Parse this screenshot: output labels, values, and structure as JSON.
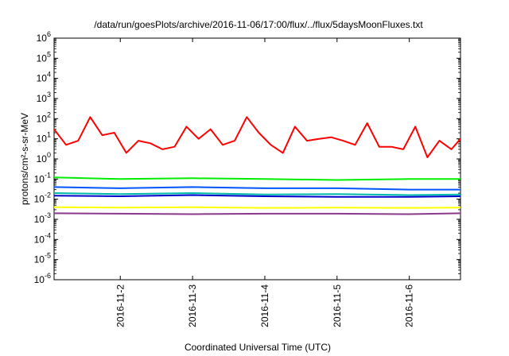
{
  "chart_data": {
    "type": "line",
    "title": "/data/run/goesPlots/archive/2016-11-06/17:00/flux/../flux/5daysMoonFluxes.txt",
    "xlabel": "Coordinated Universal Time (UTC)",
    "ylabel": "protons/cm²-s-sr-MeV",
    "y_scale": "log",
    "ylim_exponents": [
      -6,
      6
    ],
    "y_tick_labels": [
      {
        "base": "10",
        "exp": "6"
      },
      {
        "base": "10",
        "exp": "5"
      },
      {
        "base": "10",
        "exp": "4"
      },
      {
        "base": "10",
        "exp": "3"
      },
      {
        "base": "10",
        "exp": "2"
      },
      {
        "base": "10",
        "exp": "1"
      },
      {
        "base": "10",
        "exp": "0"
      },
      {
        "base": "10",
        "exp": "-1"
      },
      {
        "base": "10",
        "exp": "-2"
      },
      {
        "base": "10",
        "exp": "-3"
      },
      {
        "base": "10",
        "exp": "-4"
      },
      {
        "base": "10",
        "exp": "-5"
      },
      {
        "base": "10",
        "exp": "-6"
      }
    ],
    "xlim": [
      "2016-11-01 02:00",
      "2016-11-06 17:00"
    ],
    "x_tick_labels": [
      "2016-11-2",
      "2016-11-3",
      "2016-11-4",
      "2016-11-5",
      "2016-11-6"
    ],
    "grid": false,
    "series": [
      {
        "color": "#ff0000",
        "x": [
          "2016-11-01 02:00",
          "2016-11-01 06:00",
          "2016-11-01 10:00",
          "2016-11-01 14:00",
          "2016-11-01 18:00",
          "2016-11-01 22:00",
          "2016-11-02 02:00",
          "2016-11-02 06:00",
          "2016-11-02 10:00",
          "2016-11-02 14:00",
          "2016-11-02 18:00",
          "2016-11-02 22:00",
          "2016-11-03 02:00",
          "2016-11-03 06:00",
          "2016-11-03 10:00",
          "2016-11-03 14:00",
          "2016-11-03 18:00",
          "2016-11-03 22:00",
          "2016-11-04 02:00",
          "2016-11-04 06:00",
          "2016-11-04 10:00",
          "2016-11-04 14:00",
          "2016-11-04 18:00",
          "2016-11-04 22:00",
          "2016-11-05 02:00",
          "2016-11-05 06:00",
          "2016-11-05 10:00",
          "2016-11-05 14:00",
          "2016-11-05 18:00",
          "2016-11-05 22:00",
          "2016-11-06 02:00",
          "2016-11-06 06:00",
          "2016-11-06 10:00",
          "2016-11-06 14:00",
          "2016-11-06 17:00"
        ],
        "values": [
          30,
          5,
          8,
          120,
          15,
          20,
          2,
          8,
          6,
          3,
          4,
          40,
          10,
          30,
          5,
          8,
          120,
          20,
          5,
          2,
          40,
          8,
          10,
          12,
          8,
          5,
          60,
          4,
          4,
          3,
          40,
          1.2,
          8,
          3,
          10
        ]
      },
      {
        "color": "#00ee00",
        "x": [
          "2016-11-01 02:00",
          "2016-11-02 00:00",
          "2016-11-03 00:00",
          "2016-11-04 00:00",
          "2016-11-05 00:00",
          "2016-11-06 00:00",
          "2016-11-06 17:00"
        ],
        "values": [
          0.12,
          0.1,
          0.11,
          0.1,
          0.09,
          0.1,
          0.1
        ]
      },
      {
        "color": "#0055ff",
        "x": [
          "2016-11-01 02:00",
          "2016-11-02 00:00",
          "2016-11-03 00:00",
          "2016-11-04 00:00",
          "2016-11-05 00:00",
          "2016-11-06 00:00",
          "2016-11-06 17:00"
        ],
        "values": [
          0.04,
          0.035,
          0.04,
          0.035,
          0.035,
          0.03,
          0.03
        ]
      },
      {
        "color": "#00bbaa",
        "x": [
          "2016-11-01 02:00",
          "2016-11-02 00:00",
          "2016-11-03 00:00",
          "2016-11-04 00:00",
          "2016-11-05 00:00",
          "2016-11-06 00:00",
          "2016-11-06 17:00"
        ],
        "values": [
          0.02,
          0.018,
          0.02,
          0.017,
          0.018,
          0.016,
          0.017
        ]
      },
      {
        "color": "#0000cc",
        "x": [
          "2016-11-01 02:00",
          "2016-11-02 00:00",
          "2016-11-03 00:00",
          "2016-11-04 00:00",
          "2016-11-05 00:00",
          "2016-11-06 00:00",
          "2016-11-06 17:00"
        ],
        "values": [
          0.015,
          0.014,
          0.016,
          0.014,
          0.013,
          0.013,
          0.014
        ]
      },
      {
        "color": "#ffff00",
        "x": [
          "2016-11-01 02:00",
          "2016-11-02 00:00",
          "2016-11-03 00:00",
          "2016-11-04 00:00",
          "2016-11-05 00:00",
          "2016-11-06 00:00",
          "2016-11-06 17:00"
        ],
        "values": [
          0.004,
          0.0038,
          0.004,
          0.0037,
          0.0038,
          0.0037,
          0.0038
        ]
      },
      {
        "color": "#8b3a8b",
        "x": [
          "2016-11-01 02:00",
          "2016-11-02 00:00",
          "2016-11-03 00:00",
          "2016-11-04 00:00",
          "2016-11-05 00:00",
          "2016-11-06 00:00",
          "2016-11-06 17:00"
        ],
        "values": [
          0.002,
          0.0019,
          0.0018,
          0.0019,
          0.0019,
          0.0018,
          0.002
        ]
      }
    ]
  }
}
